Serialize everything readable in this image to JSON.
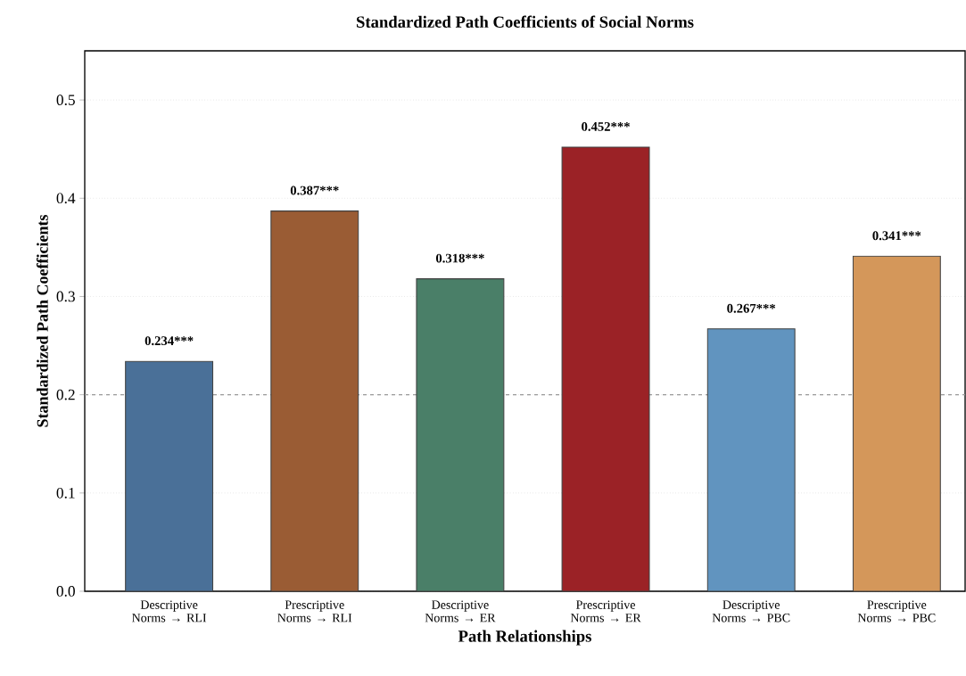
{
  "chart_data": {
    "type": "bar",
    "title": "Standardized Path Coefficients of Social Norms",
    "xlabel": "Path Relationships",
    "ylabel": "Standardized Path Coefficients",
    "categories": [
      "Descriptive Norms → RLI",
      "Prescriptive Norms → RLI",
      "Descriptive Norms → ER",
      "Prescriptive Norms → ER",
      "Descriptive Norms → PBC",
      "Prescriptive Norms → PBC"
    ],
    "values": [
      0.234,
      0.387,
      0.318,
      0.452,
      0.267,
      0.341
    ],
    "colors": [
      "#4a7098",
      "#9a5c34",
      "#4a7f68",
      "#9b2226",
      "#6194bf",
      "#d4975a"
    ],
    "value_labels": [
      "0.234***",
      "0.387***",
      "0.318***",
      "0.452***",
      "0.267***",
      "0.341***"
    ],
    "ylim": [
      0,
      0.55
    ],
    "yticks": [
      {
        "value": 0,
        "label": "0.0"
      },
      {
        "value": 0.1,
        "label": "0.1"
      },
      {
        "value": 0.2,
        "label": "0.2"
      },
      {
        "value": 0.3,
        "label": "0.3"
      },
      {
        "value": 0.4,
        "label": "0.4"
      },
      {
        "value": 0.5,
        "label": "0.5"
      }
    ],
    "grid": "y",
    "ref_lines": [
      {
        "axis": "y",
        "value": 0.2,
        "color": "#999999",
        "line_style": "dashed"
      }
    ]
  }
}
